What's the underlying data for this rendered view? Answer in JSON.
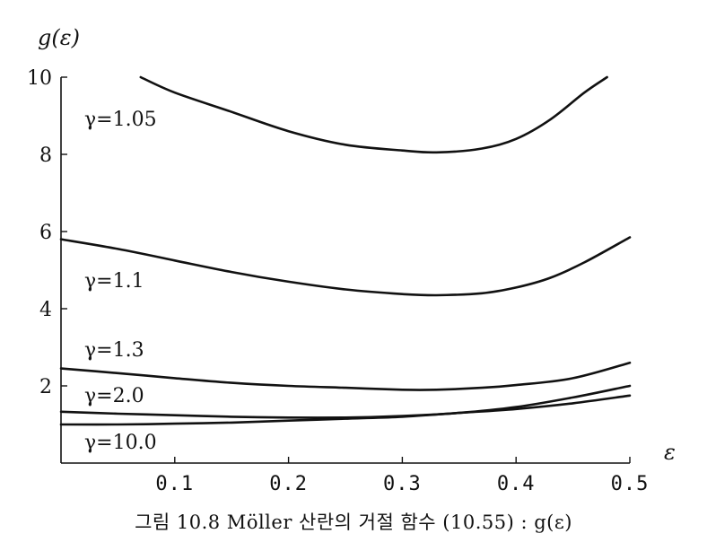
{
  "chart_data": {
    "type": "line",
    "ylabel": "g(ε)",
    "xlabel": "ε",
    "xlim": [
      0.0,
      0.5
    ],
    "ylim": [
      0.0,
      10.0
    ],
    "xticks": [
      0.1,
      0.2,
      0.3,
      0.4,
      0.5
    ],
    "xtick_labels": [
      "0.1",
      "0.2",
      "0.3",
      "0.4",
      "0.5"
    ],
    "yticks": [
      2,
      4,
      6,
      8,
      10
    ],
    "ytick_labels": [
      "2",
      "4",
      "6",
      "8",
      "10"
    ],
    "grid": false,
    "series": [
      {
        "name": "γ=1.05",
        "x": [
          0.07,
          0.1,
          0.15,
          0.2,
          0.25,
          0.3,
          0.33,
          0.37,
          0.4,
          0.43,
          0.46,
          0.48
        ],
        "y": [
          10.0,
          9.6,
          9.1,
          8.6,
          8.25,
          8.1,
          8.05,
          8.15,
          8.4,
          8.9,
          9.6,
          10.0
        ]
      },
      {
        "name": "γ=1.1",
        "x": [
          0.0,
          0.05,
          0.1,
          0.15,
          0.2,
          0.25,
          0.3,
          0.33,
          0.37,
          0.4,
          0.43,
          0.46,
          0.5
        ],
        "y": [
          5.8,
          5.55,
          5.25,
          4.95,
          4.7,
          4.5,
          4.38,
          4.35,
          4.4,
          4.55,
          4.8,
          5.2,
          5.85
        ]
      },
      {
        "name": "γ=1.3",
        "x": [
          0.0,
          0.05,
          0.1,
          0.15,
          0.2,
          0.25,
          0.3,
          0.33,
          0.37,
          0.4,
          0.45,
          0.5
        ],
        "y": [
          2.45,
          2.33,
          2.2,
          2.08,
          2.0,
          1.95,
          1.9,
          1.9,
          1.95,
          2.02,
          2.2,
          2.6
        ]
      },
      {
        "name": "γ=2.0",
        "x": [
          0.0,
          0.05,
          0.1,
          0.15,
          0.2,
          0.25,
          0.3,
          0.35,
          0.4,
          0.45,
          0.5
        ],
        "y": [
          1.33,
          1.28,
          1.24,
          1.2,
          1.18,
          1.18,
          1.22,
          1.3,
          1.45,
          1.7,
          2.0
        ]
      },
      {
        "name": "γ=10.0",
        "x": [
          0.0,
          0.05,
          0.1,
          0.15,
          0.2,
          0.25,
          0.3,
          0.35,
          0.4,
          0.45,
          0.5
        ],
        "y": [
          1.0,
          1.0,
          1.02,
          1.05,
          1.1,
          1.15,
          1.2,
          1.3,
          1.4,
          1.55,
          1.75
        ]
      }
    ]
  },
  "caption": "그림 10.8  Möller 산란의 거절 함수 (10.55) : g(ε)"
}
